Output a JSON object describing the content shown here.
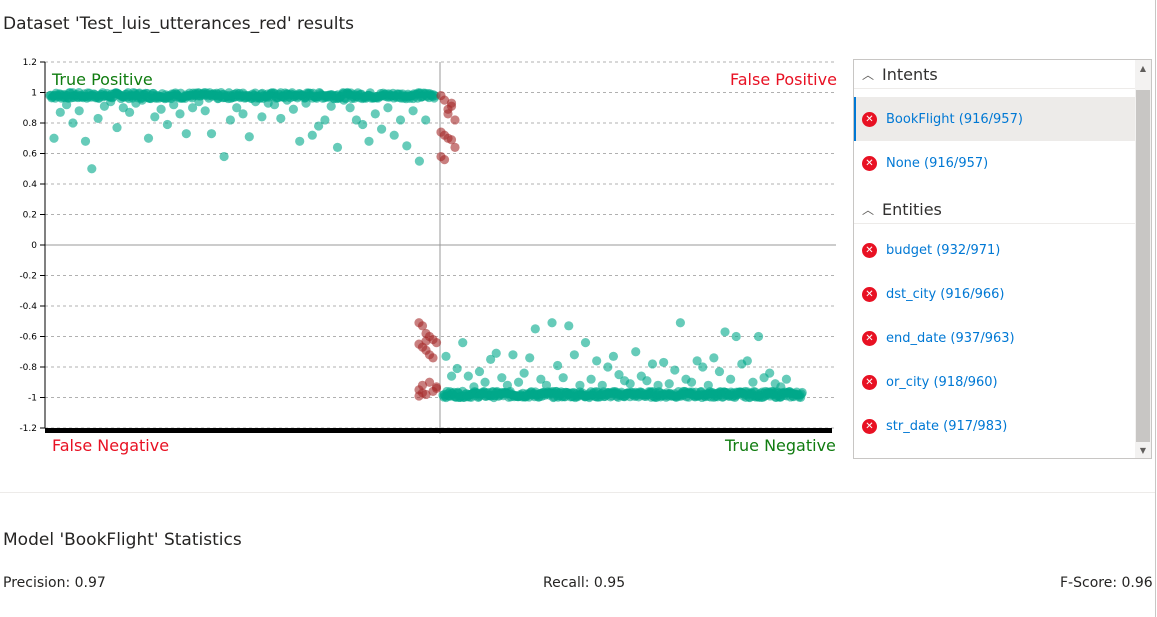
{
  "page_title": "Dataset 'Test_luis_utterances_red' results",
  "quadrants": {
    "tp": "True Positive",
    "fp": "False Positive",
    "fn": "False Negative",
    "tn": "True Negative"
  },
  "colors": {
    "correct": "#00a88a",
    "incorrect": "#a52a2a",
    "positive_label": "#107c10",
    "negative_label": "#e81123"
  },
  "panel": {
    "intents_header": "Intents",
    "intents": [
      {
        "label": "BookFlight (916/957)",
        "selected": true
      },
      {
        "label": "None (916/957)",
        "selected": false
      }
    ],
    "entities_header": "Entities",
    "entities": [
      {
        "label": "budget (932/971)"
      },
      {
        "label": "dst_city (916/966)"
      },
      {
        "label": "end_date (937/963)"
      },
      {
        "label": "or_city (918/960)"
      },
      {
        "label": "str_date (917/983)"
      }
    ]
  },
  "stats": {
    "title": "Model 'BookFlight' Statistics",
    "precision": "Precision: 0.97",
    "recall": "Recall: 0.95",
    "fscore": "F-Score: 0.96"
  },
  "chart_data": {
    "type": "scatter",
    "title": "",
    "xlabel": "",
    "ylabel": "",
    "ylim": [
      -1.2,
      1.2
    ],
    "yticks": [
      "1.2",
      "1",
      "0.8",
      "0.6",
      "0.4",
      "0.2",
      "0",
      "-0.2",
      "-0.4",
      "-0.6",
      "-0.8",
      "-1",
      "-1.2"
    ],
    "grid": true,
    "series": [
      {
        "kind": "true-positive",
        "dense_band": {
          "count": 440,
          "y_range": [
            0.96,
            1.0
          ]
        },
        "points": [
          0.7,
          0.87,
          0.92,
          0.8,
          0.88,
          0.68,
          0.5,
          0.83,
          0.91,
          0.94,
          0.77,
          0.9,
          0.87,
          0.93,
          0.95,
          0.7,
          0.84,
          0.89,
          0.79,
          0.92,
          0.86,
          0.73,
          0.9,
          0.94,
          0.88,
          0.73,
          0.96,
          0.58,
          0.82,
          0.9,
          0.86,
          0.71,
          0.94,
          0.84,
          0.93,
          0.92,
          0.83,
          0.95,
          0.89,
          0.68,
          0.93,
          0.72,
          0.78,
          0.82,
          0.91,
          0.64,
          0.95,
          0.9,
          0.82,
          0.79,
          0.68,
          0.86,
          0.76,
          0.9,
          0.72,
          0.82,
          0.65,
          0.88,
          0.55,
          0.82
        ]
      },
      {
        "kind": "false-positive",
        "points": [
          0.98,
          0.95,
          0.89,
          0.93,
          0.82,
          0.74,
          0.72,
          0.7,
          0.69,
          0.64,
          0.58,
          0.56,
          0.86,
          0.91
        ]
      },
      {
        "kind": "false-negative",
        "points": [
          -0.51,
          -0.53,
          -0.58,
          -0.6,
          -0.62,
          -0.64,
          -0.65,
          -0.67,
          -0.69,
          -0.72,
          -0.74,
          -0.94,
          -0.95,
          -0.97,
          -0.98,
          -0.9,
          -0.96,
          -0.93,
          -0.99,
          -0.92,
          -0.63
        ]
      },
      {
        "kind": "true-negative",
        "dense_band": {
          "count": 460,
          "y_range": [
            -1.0,
            -0.96
          ]
        },
        "points": [
          -0.73,
          -0.86,
          -0.81,
          -0.64,
          -0.86,
          -0.93,
          -0.83,
          -0.9,
          -0.75,
          -0.71,
          -0.87,
          -0.92,
          -0.72,
          -0.9,
          -0.84,
          -0.74,
          -0.55,
          -0.88,
          -0.92,
          -0.51,
          -0.79,
          -0.87,
          -0.53,
          -0.72,
          -0.92,
          -0.64,
          -0.88,
          -0.76,
          -0.92,
          -0.8,
          -0.73,
          -0.85,
          -0.89,
          -0.91,
          -0.7,
          -0.86,
          -0.89,
          -0.78,
          -0.92,
          -0.77,
          -0.91,
          -0.82,
          -0.51,
          -0.88,
          -0.9,
          -0.76,
          -0.8,
          -0.92,
          -0.74,
          -0.83,
          -0.57,
          -0.88,
          -0.6,
          -0.78,
          -0.76,
          -0.9,
          -0.6,
          -0.87,
          -0.84,
          -0.91,
          -0.93,
          -0.88
        ]
      }
    ]
  }
}
